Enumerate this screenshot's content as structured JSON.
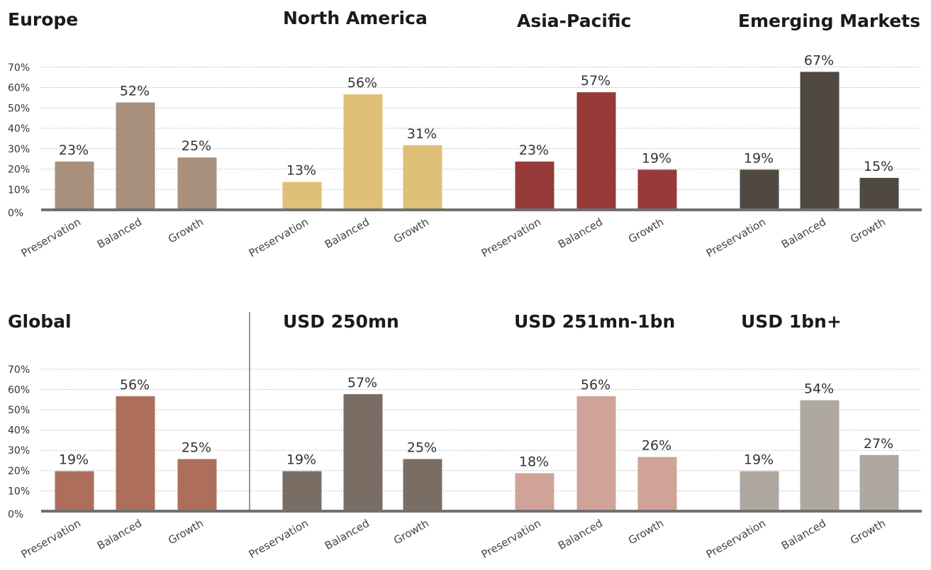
{
  "chart_data": [
    {
      "type": "bar",
      "title": "Europe",
      "color": "#a8907c",
      "categories": [
        "Preservation",
        "Balanced",
        "Growth"
      ],
      "values": [
        23,
        52,
        25
      ],
      "value_labels": [
        "23%",
        "52%",
        "25%"
      ],
      "yticks": [
        "0%",
        "10%",
        "20%",
        "30%",
        "40%",
        "50%",
        "60%",
        "70%"
      ],
      "ylim": [
        0,
        70
      ]
    },
    {
      "type": "bar",
      "title": "North America",
      "color": "#e0bf78",
      "categories": [
        "Preservation",
        "Balanced",
        "Growth"
      ],
      "values": [
        13,
        56,
        31
      ],
      "value_labels": [
        "13%",
        "56%",
        "31%"
      ],
      "ylim": [
        0,
        70
      ]
    },
    {
      "type": "bar",
      "title": "Asia-Pacific",
      "color": "#963b39",
      "categories": [
        "Preservation",
        "Balanced",
        "Growth"
      ],
      "values": [
        23,
        57,
        19
      ],
      "value_labels": [
        "23%",
        "57%",
        "19%"
      ],
      "ylim": [
        0,
        70
      ]
    },
    {
      "type": "bar",
      "title": "Emerging Markets",
      "color": "#4f4942",
      "categories": [
        "Preservation",
        "Balanced",
        "Growth"
      ],
      "values": [
        19,
        67,
        15
      ],
      "value_labels": [
        "19%",
        "67%",
        "15%"
      ],
      "ylim": [
        0,
        70
      ]
    },
    {
      "type": "bar",
      "title": "Global",
      "color": "#ad6f5c",
      "categories": [
        "Preservation",
        "Balanced",
        "Growth"
      ],
      "values": [
        19,
        56,
        25
      ],
      "value_labels": [
        "19%",
        "56%",
        "25%"
      ],
      "yticks": [
        "0%",
        "10%",
        "20%",
        "30%",
        "40%",
        "50%",
        "60%",
        "70%"
      ],
      "ylim": [
        0,
        70
      ]
    },
    {
      "type": "bar",
      "title": "USD 250mn",
      "color": "#7a6e64",
      "categories": [
        "Preservation",
        "Balanced",
        "Growth"
      ],
      "values": [
        19,
        57,
        25
      ],
      "value_labels": [
        "19%",
        "57%",
        "25%"
      ],
      "ylim": [
        0,
        70
      ]
    },
    {
      "type": "bar",
      "title": "USD 251mn-1bn",
      "color": "#cfa397",
      "categories": [
        "Preservation",
        "Balanced",
        "Growth"
      ],
      "values": [
        18,
        56,
        26
      ],
      "value_labels": [
        "18%",
        "56%",
        "26%"
      ],
      "ylim": [
        0,
        70
      ]
    },
    {
      "type": "bar",
      "title": "USD 1bn+",
      "color": "#aea8a1",
      "categories": [
        "Preservation",
        "Balanced",
        "Growth"
      ],
      "values": [
        19,
        54,
        27
      ],
      "value_labels": [
        "19%",
        "54%",
        "27%"
      ],
      "ylim": [
        0,
        70
      ]
    }
  ]
}
